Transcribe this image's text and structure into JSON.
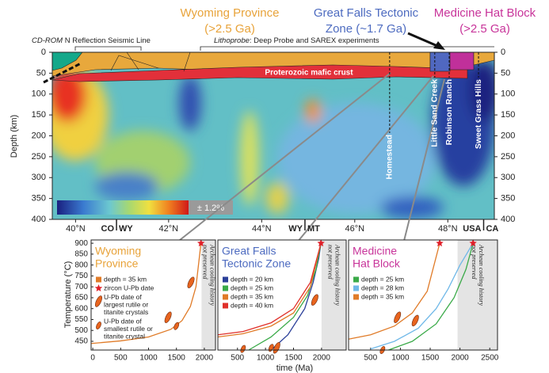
{
  "chart_data": [
    {
      "type": "section",
      "province_labels": [
        {
          "lines": [
            "Wyoming Province",
            "(>2.5 Ga)"
          ],
          "color": "#e8a33a"
        },
        {
          "lines": [
            "Great Falls Tectonic",
            "Zone (~1.7 Ga)"
          ],
          "color": "#4d6bc0"
        },
        {
          "lines": [
            "Medicine Hat Block",
            "(>2.5 Ga)"
          ],
          "color": "#c8349a"
        }
      ],
      "line_labels": [
        [
          "CD-ROM",
          " N Reflection Seismic Line"
        ],
        [
          "Lithoprobe",
          ": Deep Probe and SAREX experiments"
        ]
      ],
      "crust_label": "Proterozoic mafic crust",
      "colorbar_label": "± 1.2%",
      "y_label": "Depth (km)",
      "ylim": [
        0,
        400
      ],
      "y_inverted": true,
      "yticks": [
        0,
        50,
        100,
        150,
        200,
        250,
        300,
        350,
        400
      ],
      "xlim": [
        39.5,
        49
      ],
      "xticks": [
        {
          "value": 40,
          "label": "40°N"
        },
        {
          "value": 42,
          "label": "42°N"
        },
        {
          "value": 44,
          "label": "44°N"
        },
        {
          "value": 46,
          "label": "46°N"
        },
        {
          "value": 48,
          "label": "48°N"
        }
      ],
      "borders": [
        {
          "x": 40.88,
          "labels": [
            "CO",
            "WY"
          ]
        },
        {
          "x": 44.93,
          "labels": [
            "WY",
            "MT"
          ]
        },
        {
          "x": 48.77,
          "labels": [
            "USA",
            "CA"
          ]
        }
      ],
      "sites": [
        {
          "name": "Homestead",
          "x": 46.75
        },
        {
          "name": "Little Sand Creek",
          "x": 47.72
        },
        {
          "name": "Robinson Ranch",
          "x": 48.03
        },
        {
          "name": "Sweet Grass Hills",
          "x": 48.66
        }
      ]
    },
    {
      "type": "line",
      "title": [
        "Wyoming",
        "Province"
      ],
      "title_color": "#e8a33a",
      "y_label": "Temperature (°C)",
      "xlim": [
        -30,
        2200
      ],
      "ylim": [
        410,
        915
      ],
      "xticks": [
        0,
        500,
        1000,
        1500,
        2000
      ],
      "yticks": [
        450,
        500,
        550,
        600,
        650,
        700,
        750,
        800,
        850,
        900
      ],
      "shaded_xrange": [
        1950,
        2200
      ],
      "shaded_label": [
        "Archean cooling history",
        "not preserved"
      ],
      "series": [
        {
          "name": "depth = 35 km",
          "color": "#e07b28",
          "x": [
            -30,
            500,
            1000,
            1400,
            1600,
            1750,
            1850,
            1940
          ],
          "y": [
            440,
            452,
            470,
            505,
            545,
            610,
            700,
            900
          ]
        }
      ],
      "markers": [
        {
          "name": [
            "zircon U-Pb date"
          ],
          "shape": "star",
          "color": "#e0202a",
          "x": [
            1940
          ],
          "y": [
            900
          ]
        },
        {
          "name": [
            "U-Pb date of",
            "largest rutile or",
            "titanite crystals"
          ],
          "shape": "large-ellipse",
          "color": "#e8641e",
          "x": [
            1760,
            1350
          ],
          "y": [
            720,
            560
          ]
        },
        {
          "name": [
            "U-Pb date of",
            "smallest rutile or",
            "titanite crystal"
          ],
          "shape": "small-ellipse",
          "color": "#e8641e",
          "x": [
            1500
          ],
          "y": [
            520
          ]
        }
      ]
    },
    {
      "type": "line",
      "title": [
        "Great Falls",
        "Tectonic Zone"
      ],
      "title_color": "#4d6bc0",
      "x_label": "time (Ma)",
      "xlim": [
        150,
        2440
      ],
      "ylim": [
        410,
        915
      ],
      "xticks": [
        500,
        1000,
        1500,
        2000
      ],
      "shaded_xrange": [
        2000,
        2440
      ],
      "shaded_label": [
        "Archean cooling history",
        "not preserved"
      ],
      "series": [
        {
          "name": "depth = 20 km",
          "color": "#2b3f99",
          "x": [
            1100,
            1400,
            1700,
            1850,
            1950,
            1990
          ],
          "y": [
            410,
            480,
            600,
            720,
            830,
            900
          ]
        },
        {
          "name": "depth = 25 km",
          "color": "#3aaa48",
          "x": [
            700,
            1100,
            1500,
            1750,
            1900,
            1990
          ],
          "y": [
            410,
            470,
            560,
            660,
            780,
            900
          ]
        },
        {
          "name": "depth = 35 km",
          "color": "#e07b28",
          "x": [
            150,
            600,
            1100,
            1500,
            1800,
            1990
          ],
          "y": [
            470,
            485,
            520,
            580,
            700,
            900
          ]
        },
        {
          "name": "depth = 40 km",
          "color": "#e0302a",
          "x": [
            150,
            600,
            1100,
            1500,
            1800,
            1990
          ],
          "y": [
            480,
            495,
            535,
            600,
            720,
            900
          ]
        }
      ],
      "markers": [
        {
          "shape": "star",
          "color": "#e0202a",
          "x": [
            1990
          ],
          "y": [
            900
          ]
        },
        {
          "shape": "large-ellipse",
          "color": "#e8641e",
          "x": [
            1200,
            1880
          ],
          "y": [
            420,
            640
          ]
        },
        {
          "shape": "small-ellipse",
          "color": "#e8641e",
          "x": [
            600,
            1100
          ],
          "y": [
            415,
            420
          ]
        }
      ]
    },
    {
      "type": "line",
      "title": [
        "Medicine",
        "Hat Block"
      ],
      "title_color": "#c8349a",
      "xlim": [
        130,
        2630
      ],
      "ylim": [
        410,
        915
      ],
      "xticks": [
        500,
        1000,
        1500,
        2000,
        2500
      ],
      "shaded_xrange": [
        1960,
        2630
      ],
      "shaded_label": [
        "Archean cooling history",
        "not preserved"
      ],
      "series": [
        {
          "name": "depth = 25 km",
          "color": "#3aaa48",
          "x": [
            800,
            1200,
            1600,
            1900,
            2100,
            2220
          ],
          "y": [
            410,
            450,
            530,
            650,
            780,
            900
          ]
        },
        {
          "name": "depth = 28 km",
          "color": "#6fb8e8",
          "x": [
            500,
            900,
            1300,
            1600,
            1800,
            2000,
            2220
          ],
          "y": [
            415,
            450,
            510,
            600,
            690,
            800,
            900
          ]
        },
        {
          "name": "depth = 35 km",
          "color": "#e07b28",
          "x": [
            130,
            500,
            900,
            1200,
            1450,
            1660
          ],
          "y": [
            460,
            480,
            520,
            580,
            680,
            900
          ]
        }
      ],
      "markers": [
        {
          "shape": "star",
          "color": "#e0202a",
          "x": [
            1660,
            2220
          ],
          "y": [
            900,
            900
          ]
        },
        {
          "shape": "large-ellipse",
          "color": "#e8641e",
          "x": [
            950,
            1250
          ],
          "y": [
            560,
            545
          ]
        },
        {
          "shape": "small-ellipse",
          "color": "#e8641e",
          "x": [
            700
          ],
          "y": [
            410
          ]
        }
      ]
    }
  ]
}
